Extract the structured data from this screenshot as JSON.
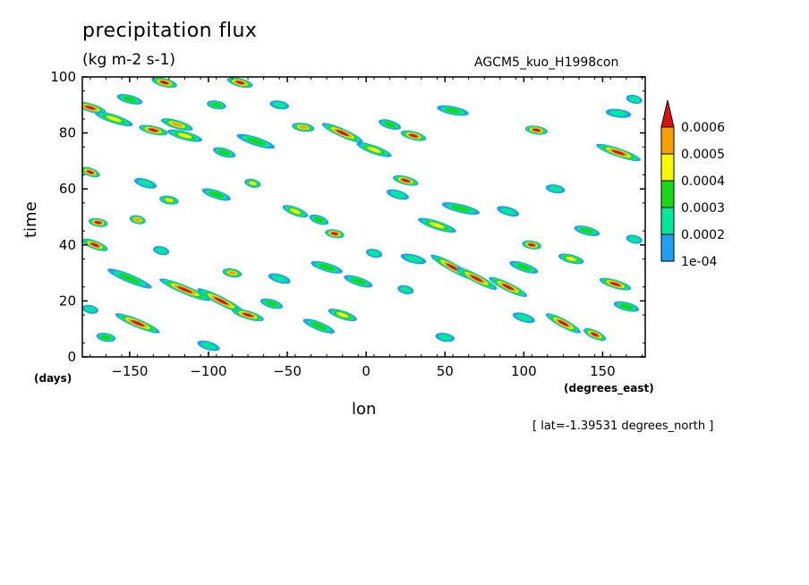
{
  "chart_data": {
    "type": "heatmap",
    "title": "precipitation flux",
    "units": "(kg m-2 s-1)",
    "experiment": "AGCM5_kuo_H1998con",
    "xlabel": "lon",
    "ylabel": "time",
    "x_unit": "(degrees_east)",
    "y_unit": "(days)",
    "x_range": [
      -180,
      177
    ],
    "y_range": [
      0,
      100
    ],
    "x_ticks": [
      -150,
      -100,
      -50,
      0,
      50,
      100,
      150
    ],
    "y_ticks": [
      0,
      20,
      40,
      60,
      80,
      100
    ],
    "x_tick_labels": [
      "−150",
      "−100",
      "−50",
      "0",
      "50",
      "100",
      "150"
    ],
    "y_tick_labels": [
      "0",
      "20",
      "40",
      "60",
      "80",
      "100"
    ],
    "subtitle": "[ lat=-1.39531 degrees_north ]",
    "colorbar": {
      "levels": [
        0.0001,
        0.0002,
        0.0003,
        0.0004,
        0.0005,
        0.0006
      ],
      "labels": [
        "1e-04",
        "0.0002",
        "0.0003",
        "0.0004",
        "0.0005",
        "0.0006"
      ],
      "colors": [
        "#1fa0f0",
        "#00e89a",
        "#18d818",
        "#f8f800",
        "#f8a000",
        "#e01010"
      ]
    },
    "features": [
      {
        "lon": -175,
        "t": 89,
        "len": 18,
        "dt": -3,
        "peak": 6
      },
      {
        "lon": -160,
        "t": 85,
        "len": 22,
        "dt": -4,
        "peak": 4
      },
      {
        "lon": -135,
        "t": 81,
        "len": 16,
        "dt": -2,
        "peak": 6
      },
      {
        "lon": -150,
        "t": 92,
        "len": 14,
        "dt": -2,
        "peak": 3
      },
      {
        "lon": -120,
        "t": 83,
        "len": 18,
        "dt": -3,
        "peak": 5
      },
      {
        "lon": -115,
        "t": 79,
        "len": 20,
        "dt": -3,
        "peak": 4
      },
      {
        "lon": -128,
        "t": 98,
        "len": 14,
        "dt": -2,
        "peak": 6
      },
      {
        "lon": -80,
        "t": 98,
        "len": 14,
        "dt": -2,
        "peak": 6
      },
      {
        "lon": -95,
        "t": 90,
        "len": 10,
        "dt": -1,
        "peak": 3
      },
      {
        "lon": -70,
        "t": 77,
        "len": 22,
        "dt": -4,
        "peak": 3
      },
      {
        "lon": -72,
        "t": 62,
        "len": 8,
        "dt": -1,
        "peak": 4
      },
      {
        "lon": -90,
        "t": 73,
        "len": 12,
        "dt": -2,
        "peak": 3
      },
      {
        "lon": -40,
        "t": 82,
        "len": 12,
        "dt": -1,
        "peak": 5
      },
      {
        "lon": -15,
        "t": 80,
        "len": 24,
        "dt": -6,
        "peak": 6
      },
      {
        "lon": 5,
        "t": 74,
        "len": 20,
        "dt": -4,
        "peak": 4
      },
      {
        "lon": 30,
        "t": 79,
        "len": 14,
        "dt": -2,
        "peak": 6
      },
      {
        "lon": 15,
        "t": 83,
        "len": 12,
        "dt": -2,
        "peak": 3
      },
      {
        "lon": 25,
        "t": 63,
        "len": 14,
        "dt": -2,
        "peak": 6
      },
      {
        "lon": 55,
        "t": 88,
        "len": 18,
        "dt": -2,
        "peak": 3
      },
      {
        "lon": 108,
        "t": 81,
        "len": 12,
        "dt": -1,
        "peak": 6
      },
      {
        "lon": 160,
        "t": 73,
        "len": 26,
        "dt": -5,
        "peak": 6
      },
      {
        "lon": 160,
        "t": 87,
        "len": 14,
        "dt": -1,
        "peak": 2
      },
      {
        "lon": -175,
        "t": 66,
        "len": 10,
        "dt": -2,
        "peak": 6
      },
      {
        "lon": -140,
        "t": 62,
        "len": 12,
        "dt": -2,
        "peak": 2
      },
      {
        "lon": -95,
        "t": 58,
        "len": 16,
        "dt": -3,
        "peak": 3
      },
      {
        "lon": -45,
        "t": 52,
        "len": 14,
        "dt": -3,
        "peak": 4
      },
      {
        "lon": -30,
        "t": 49,
        "len": 10,
        "dt": -2,
        "peak": 3
      },
      {
        "lon": -20,
        "t": 44,
        "len": 10,
        "dt": -1,
        "peak": 6
      },
      {
        "lon": 20,
        "t": 58,
        "len": 12,
        "dt": -2,
        "peak": 2
      },
      {
        "lon": 60,
        "t": 53,
        "len": 22,
        "dt": -3,
        "peak": 3
      },
      {
        "lon": 45,
        "t": 47,
        "len": 22,
        "dt": -4,
        "peak": 4
      },
      {
        "lon": 90,
        "t": 52,
        "len": 12,
        "dt": -2,
        "peak": 2
      },
      {
        "lon": -170,
        "t": 48,
        "len": 10,
        "dt": -1,
        "peak": 6
      },
      {
        "lon": -172,
        "t": 40,
        "len": 14,
        "dt": -3,
        "peak": 6
      },
      {
        "lon": -145,
        "t": 49,
        "len": 8,
        "dt": -1,
        "peak": 5
      },
      {
        "lon": -125,
        "t": 56,
        "len": 10,
        "dt": -1,
        "peak": 4
      },
      {
        "lon": 105,
        "t": 40,
        "len": 10,
        "dt": -1,
        "peak": 6
      },
      {
        "lon": 140,
        "t": 45,
        "len": 14,
        "dt": -2,
        "peak": 3
      },
      {
        "lon": 30,
        "t": 35,
        "len": 14,
        "dt": -2,
        "peak": 2
      },
      {
        "lon": 55,
        "t": 32,
        "len": 26,
        "dt": -8,
        "peak": 6
      },
      {
        "lon": 70,
        "t": 28,
        "len": 24,
        "dt": -7,
        "peak": 6
      },
      {
        "lon": 90,
        "t": 25,
        "len": 22,
        "dt": -6,
        "peak": 6
      },
      {
        "lon": 100,
        "t": 32,
        "len": 16,
        "dt": -3,
        "peak": 3
      },
      {
        "lon": 130,
        "t": 35,
        "len": 14,
        "dt": -2,
        "peak": 4
      },
      {
        "lon": 158,
        "t": 26,
        "len": 18,
        "dt": -3,
        "peak": 6
      },
      {
        "lon": 165,
        "t": 18,
        "len": 14,
        "dt": -2,
        "peak": 3
      },
      {
        "lon": 125,
        "t": 12,
        "len": 20,
        "dt": -6,
        "peak": 6
      },
      {
        "lon": 145,
        "t": 8,
        "len": 12,
        "dt": -3,
        "peak": 6
      },
      {
        "lon": 100,
        "t": 14,
        "len": 12,
        "dt": -2,
        "peak": 2
      },
      {
        "lon": 50,
        "t": 7,
        "len": 10,
        "dt": -1,
        "peak": 2
      },
      {
        "lon": 25,
        "t": 24,
        "len": 8,
        "dt": -1,
        "peak": 2
      },
      {
        "lon": -5,
        "t": 27,
        "len": 16,
        "dt": -3,
        "peak": 3
      },
      {
        "lon": -25,
        "t": 32,
        "len": 18,
        "dt": -3,
        "peak": 3
      },
      {
        "lon": -55,
        "t": 28,
        "len": 12,
        "dt": -2,
        "peak": 2
      },
      {
        "lon": -85,
        "t": 30,
        "len": 10,
        "dt": -1,
        "peak": 5
      },
      {
        "lon": -150,
        "t": 28,
        "len": 26,
        "dt": -6,
        "peak": 3
      },
      {
        "lon": -115,
        "t": 24,
        "len": 30,
        "dt": -7,
        "peak": 6
      },
      {
        "lon": -92,
        "t": 20,
        "len": 28,
        "dt": -8,
        "peak": 6
      },
      {
        "lon": -75,
        "t": 15,
        "len": 18,
        "dt": -3,
        "peak": 6
      },
      {
        "lon": -60,
        "t": 19,
        "len": 12,
        "dt": -2,
        "peak": 3
      },
      {
        "lon": -30,
        "t": 11,
        "len": 18,
        "dt": -4,
        "peak": 3
      },
      {
        "lon": -15,
        "t": 15,
        "len": 16,
        "dt": -3,
        "peak": 4
      },
      {
        "lon": -145,
        "t": 12,
        "len": 26,
        "dt": -6,
        "peak": 6
      },
      {
        "lon": -165,
        "t": 7,
        "len": 10,
        "dt": -1,
        "peak": 3
      },
      {
        "lon": -100,
        "t": 4,
        "len": 12,
        "dt": -2,
        "peak": 2
      },
      {
        "lon": -175,
        "t": 17,
        "len": 8,
        "dt": -1,
        "peak": 2
      },
      {
        "lon": 170,
        "t": 42,
        "len": 8,
        "dt": -1,
        "peak": 2
      },
      {
        "lon": 170,
        "t": 92,
        "len": 8,
        "dt": -1,
        "peak": 2
      },
      {
        "lon": -55,
        "t": 90,
        "len": 10,
        "dt": -1,
        "peak": 2
      },
      {
        "lon": -130,
        "t": 38,
        "len": 8,
        "dt": -1,
        "peak": 2
      },
      {
        "lon": 5,
        "t": 37,
        "len": 8,
        "dt": -1,
        "peak": 2
      },
      {
        "lon": 120,
        "t": 60,
        "len": 10,
        "dt": -1,
        "peak": 2
      }
    ]
  }
}
